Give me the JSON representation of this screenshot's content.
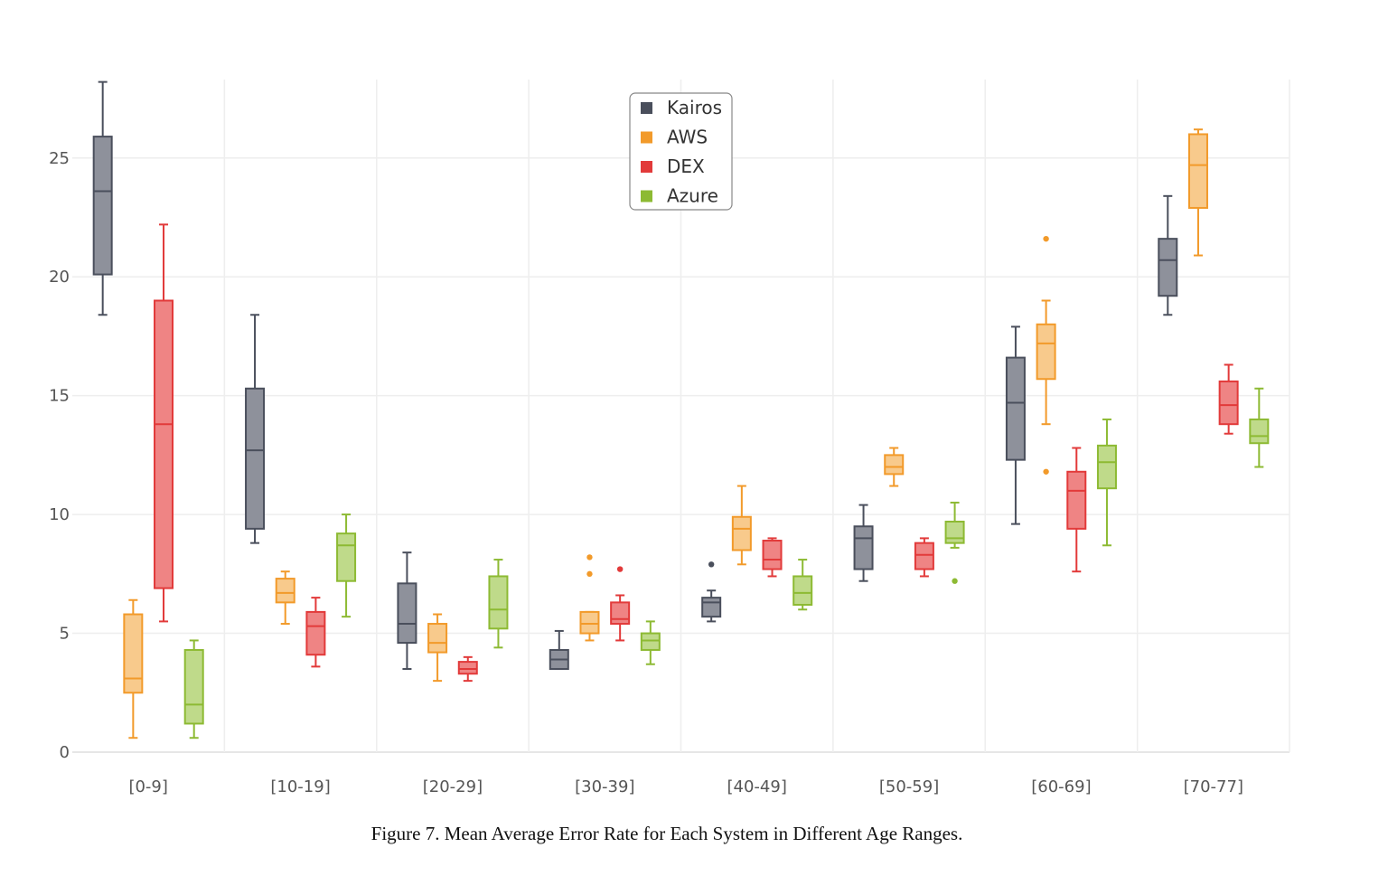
{
  "caption": "Figure 7. Mean Average Error Rate for Each System in Different Age Ranges.",
  "chart_data": {
    "type": "box",
    "title": "",
    "xlabel": "",
    "ylabel": "",
    "ylim": [
      0,
      28.3
    ],
    "yticks": [
      0,
      5,
      10,
      15,
      20,
      25
    ],
    "ytick_labels": [
      "0",
      "5",
      "10",
      "15",
      "20",
      "25"
    ],
    "grid": true,
    "legend_position": "top-center",
    "categories": [
      "[0-9]",
      "[10-19]",
      "[20-29]",
      "[30-39]",
      "[40-49]",
      "[50-59]",
      "[60-69]",
      "[70-77]"
    ],
    "series": [
      {
        "name": "Kairos",
        "color": "#4a4f5c",
        "fill": "#8e919b",
        "boxes": [
          {
            "min": 18.4,
            "q1": 20.1,
            "median": 23.6,
            "q3": 25.9,
            "max": 28.2,
            "outliers": []
          },
          {
            "min": 8.8,
            "q1": 9.4,
            "median": 12.7,
            "q3": 15.3,
            "max": 18.4,
            "outliers": []
          },
          {
            "min": 3.5,
            "q1": 4.6,
            "median": 5.4,
            "q3": 7.1,
            "max": 8.4,
            "outliers": []
          },
          {
            "min": 3.5,
            "q1": 3.5,
            "median": 3.9,
            "q3": 4.3,
            "max": 5.1,
            "outliers": []
          },
          {
            "min": 5.5,
            "q1": 5.7,
            "median": 6.3,
            "q3": 6.5,
            "max": 6.8,
            "outliers": [
              7.9
            ]
          },
          {
            "min": 7.2,
            "q1": 7.7,
            "median": 9.0,
            "q3": 9.5,
            "max": 10.4,
            "outliers": []
          },
          {
            "min": 9.6,
            "q1": 12.3,
            "median": 14.7,
            "q3": 16.6,
            "max": 17.9,
            "outliers": []
          },
          {
            "min": 18.4,
            "q1": 19.2,
            "median": 20.7,
            "q3": 21.6,
            "max": 23.4,
            "outliers": []
          }
        ]
      },
      {
        "name": "AWS",
        "color": "#f29a2a",
        "fill": "#f8ca8c",
        "boxes": [
          {
            "min": 0.6,
            "q1": 2.5,
            "median": 3.1,
            "q3": 5.8,
            "max": 6.4,
            "outliers": []
          },
          {
            "min": 5.4,
            "q1": 6.3,
            "median": 6.7,
            "q3": 7.3,
            "max": 7.6,
            "outliers": []
          },
          {
            "min": 3.0,
            "q1": 4.2,
            "median": 4.6,
            "q3": 5.4,
            "max": 5.8,
            "outliers": []
          },
          {
            "min": 4.7,
            "q1": 5.0,
            "median": 5.4,
            "q3": 5.9,
            "max": 5.9,
            "outliers": [
              7.5,
              8.2
            ]
          },
          {
            "min": 7.9,
            "q1": 8.5,
            "median": 9.4,
            "q3": 9.9,
            "max": 11.2,
            "outliers": []
          },
          {
            "min": 11.2,
            "q1": 11.7,
            "median": 12.0,
            "q3": 12.5,
            "max": 12.8,
            "outliers": []
          },
          {
            "min": 13.8,
            "q1": 15.7,
            "median": 17.2,
            "q3": 18.0,
            "max": 19.0,
            "outliers": [
              11.8,
              21.6
            ]
          },
          {
            "min": 20.9,
            "q1": 22.9,
            "median": 24.7,
            "q3": 26.0,
            "max": 26.2,
            "outliers": []
          }
        ]
      },
      {
        "name": "DEX",
        "color": "#e23a3a",
        "fill": "#ef8484",
        "boxes": [
          {
            "min": 5.5,
            "q1": 6.9,
            "median": 13.8,
            "q3": 19.0,
            "max": 22.2,
            "outliers": []
          },
          {
            "min": 3.6,
            "q1": 4.1,
            "median": 5.3,
            "q3": 5.9,
            "max": 6.5,
            "outliers": []
          },
          {
            "min": 3.0,
            "q1": 3.3,
            "median": 3.5,
            "q3": 3.8,
            "max": 4.0,
            "outliers": []
          },
          {
            "min": 4.7,
            "q1": 5.4,
            "median": 5.6,
            "q3": 6.3,
            "max": 6.6,
            "outliers": [
              7.7
            ]
          },
          {
            "min": 7.4,
            "q1": 7.7,
            "median": 8.1,
            "q3": 8.9,
            "max": 9.0,
            "outliers": []
          },
          {
            "min": 7.4,
            "q1": 7.7,
            "median": 8.3,
            "q3": 8.8,
            "max": 9.0,
            "outliers": []
          },
          {
            "min": 7.6,
            "q1": 9.4,
            "median": 11.0,
            "q3": 11.8,
            "max": 12.8,
            "outliers": []
          },
          {
            "min": 13.4,
            "q1": 13.8,
            "median": 14.6,
            "q3": 15.6,
            "max": 16.3,
            "outliers": []
          }
        ]
      },
      {
        "name": "Azure",
        "color": "#8dba33",
        "fill": "#bfda8a",
        "boxes": [
          {
            "min": 0.6,
            "q1": 1.2,
            "median": 2.0,
            "q3": 4.3,
            "max": 4.7,
            "outliers": []
          },
          {
            "min": 5.7,
            "q1": 7.2,
            "median": 8.7,
            "q3": 9.2,
            "max": 10.0,
            "outliers": []
          },
          {
            "min": 4.4,
            "q1": 5.2,
            "median": 6.0,
            "q3": 7.4,
            "max": 8.1,
            "outliers": []
          },
          {
            "min": 3.7,
            "q1": 4.3,
            "median": 4.7,
            "q3": 5.0,
            "max": 5.5,
            "outliers": []
          },
          {
            "min": 6.0,
            "q1": 6.2,
            "median": 6.7,
            "q3": 7.4,
            "max": 8.1,
            "outliers": []
          },
          {
            "min": 8.6,
            "q1": 8.8,
            "median": 9.0,
            "q3": 9.7,
            "max": 10.5,
            "outliers": [
              7.2
            ]
          },
          {
            "min": 8.7,
            "q1": 11.1,
            "median": 12.2,
            "q3": 12.9,
            "max": 14.0,
            "outliers": []
          },
          {
            "min": 12.0,
            "q1": 13.0,
            "median": 13.3,
            "q3": 14.0,
            "max": 15.3,
            "outliers": []
          }
        ]
      }
    ]
  }
}
